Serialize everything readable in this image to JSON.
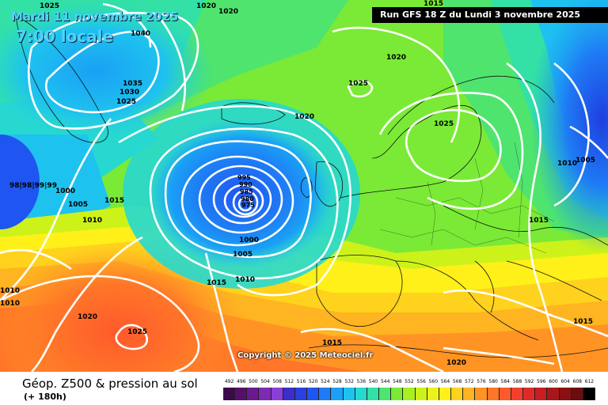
{
  "header": {
    "date": "Mardi 11 novembre 2025",
    "time": "7:00 locale",
    "run": "Run GFS 18 Z du Lundi 3 novembre 2025"
  },
  "footer": {
    "title": "Géop. Z500 & pression au sol",
    "subtitle": "(+ 180h)"
  },
  "copyright": "Copyright © 2025 Meteociel.fr",
  "legend": {
    "values": [
      "492",
      "496",
      "500",
      "504",
      "508",
      "512",
      "516",
      "520",
      "524",
      "528",
      "532",
      "536",
      "540",
      "544",
      "548",
      "552",
      "556",
      "560",
      "564",
      "568",
      "572",
      "576",
      "580",
      "584",
      "588",
      "592",
      "596",
      "600",
      "604",
      "608",
      "612"
    ],
    "colors": [
      "#3b0a4a",
      "#55106a",
      "#6a1a8e",
      "#7d2ab5",
      "#8a3fd6",
      "#3a2fc8",
      "#2c3fe0",
      "#1f55f0",
      "#1f7bf5",
      "#1aa0f5",
      "#1ec2ef",
      "#27d8d0",
      "#33e0a6",
      "#4fe46e",
      "#7aea36",
      "#a7ef1e",
      "#cdf21a",
      "#eff21a",
      "#fff01a",
      "#ffd21e",
      "#ffb421",
      "#ff9424",
      "#ff7628",
      "#ff5a2c",
      "#f2402c",
      "#e02a2a",
      "#c81e22",
      "#a8161a",
      "#8a1014",
      "#6a0c10",
      "#000000"
    ]
  },
  "pressure_labels": {
    "l1025a": "1025",
    "l1020a": "1020",
    "l1020b": "1020",
    "l1040": "1040",
    "l1035": "1035",
    "l1030": "1030",
    "l1025b": "1025",
    "l1020c": "1020",
    "l1025c": "1025",
    "l1015a": "1015",
    "l1020d": "1020",
    "l1025d": "1025",
    "l1010a": "1010",
    "l1005a": "1005",
    "l995": "995",
    "l990": "990",
    "l985": "985",
    "l980": "980",
    "l975": "975",
    "lwest": "98|98|99|99",
    "l1000a": "1000",
    "l1005b": "1005",
    "l1015b": "1015",
    "l1010b": "1010",
    "l1000b": "1000",
    "l1005c": "1005",
    "l1015c": "1015",
    "l1010c": "1010",
    "l1015d": "1015",
    "l1010d": "1010",
    "l1010e": "1010",
    "l1020e": "1020",
    "l1025e": "1025",
    "l1015e": "1015",
    "l1020f": "1020",
    "l1015f": "1015"
  }
}
